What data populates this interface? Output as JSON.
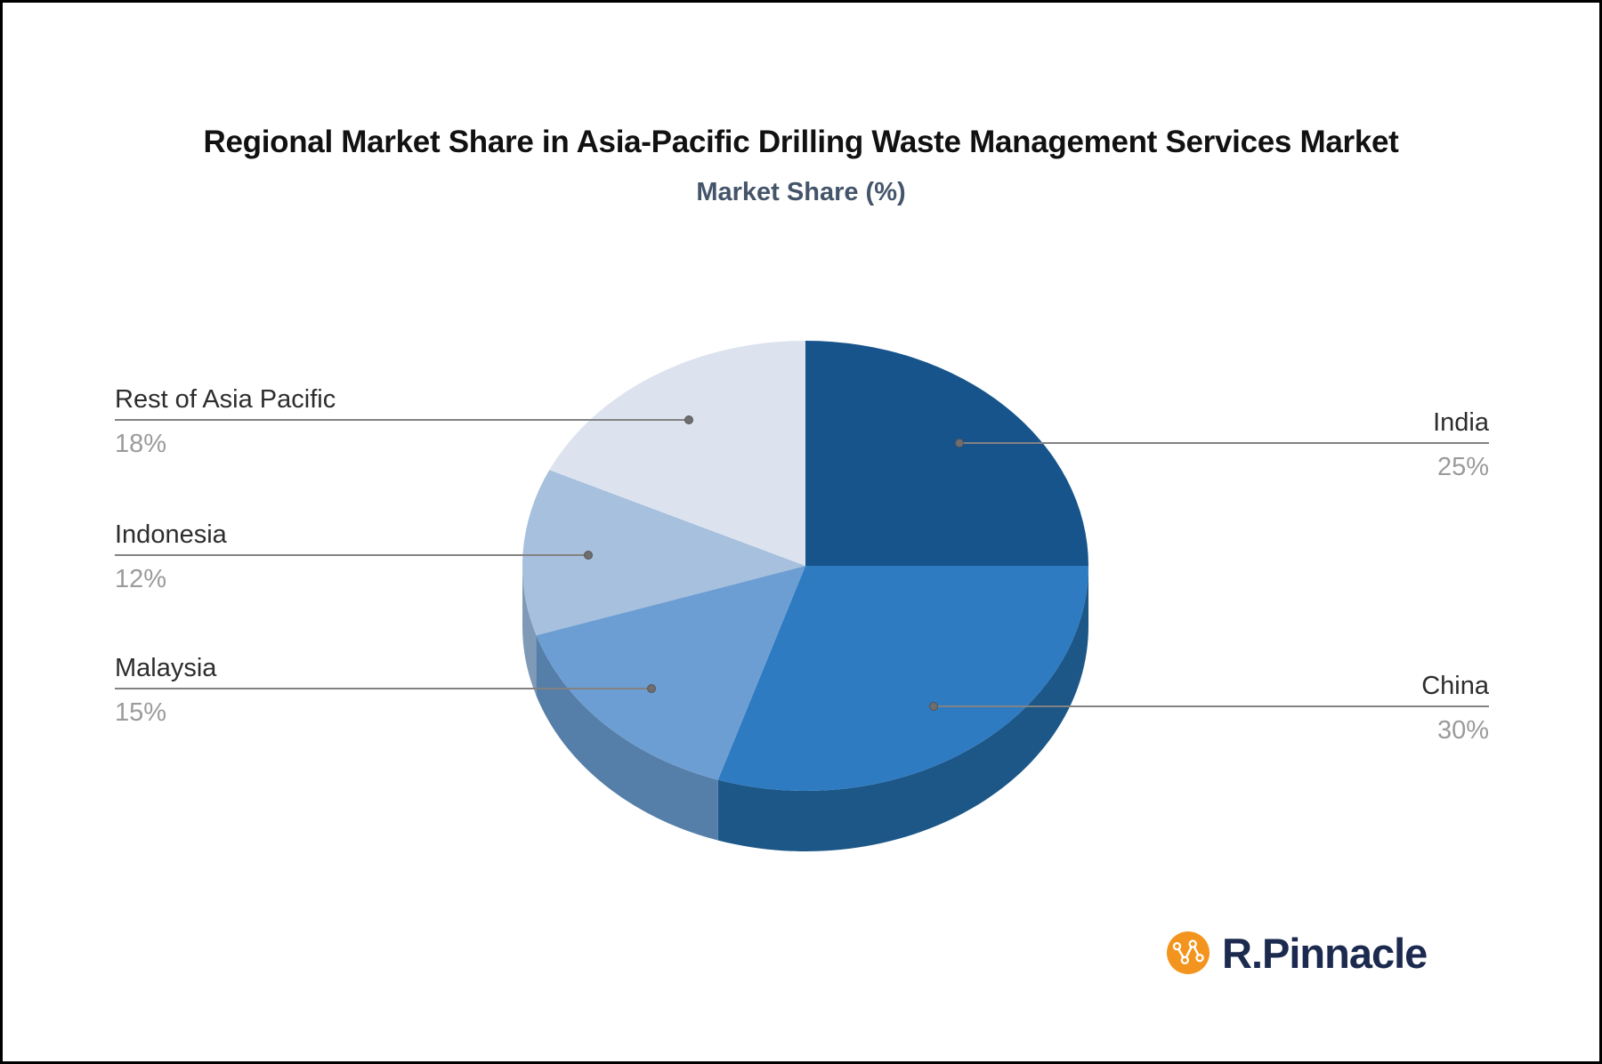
{
  "title": "Regional Market Share in Asia-Pacific Drilling Waste Management Services Market",
  "subtitle": "Market Share (%)",
  "chart_data": {
    "type": "pie",
    "title": "Regional Market Share in Asia-Pacific Drilling Waste Management Services Market",
    "subtitle": "Market Share (%)",
    "unit": "%",
    "effect": "3d-pie",
    "start_angle": "12-oclock-clockwise",
    "legend": "none, leader-line labels on left and right",
    "slices": [
      {
        "label": "India",
        "value": 25,
        "pct_label": "25%",
        "color": "#17548C",
        "side_color": "#143F66",
        "label_side": "right"
      },
      {
        "label": "China",
        "value": 30,
        "pct_label": "30%",
        "color": "#2E7BC2",
        "side_color": "#1D5787",
        "label_side": "right"
      },
      {
        "label": "Malaysia",
        "value": 15,
        "pct_label": "15%",
        "color": "#6D9ED3",
        "side_color": "#557EA8",
        "label_side": "left"
      },
      {
        "label": "Indonesia",
        "value": 12,
        "pct_label": "12%",
        "color": "#A6C0DD",
        "side_color": "#7E9AB6",
        "label_side": "left"
      },
      {
        "label": "Rest of Asia Pacific",
        "value": 18,
        "pct_label": "18%",
        "color": "#DCE3EF",
        "side_color": "#AEB8C9",
        "label_side": "left"
      }
    ]
  },
  "logo": {
    "text": "R.Pinnacle",
    "icon": "line-chart-icon",
    "icon_color": "#F3941E",
    "text_color": "#1B2A4E"
  },
  "colors": {
    "background": "#FFFFFF",
    "frame": "#000000",
    "title": "#111111",
    "subtitle": "#44546A",
    "leader_line": "#828282",
    "label_text": "#2D2D2D",
    "pct_text": "#9B9B9B"
  }
}
